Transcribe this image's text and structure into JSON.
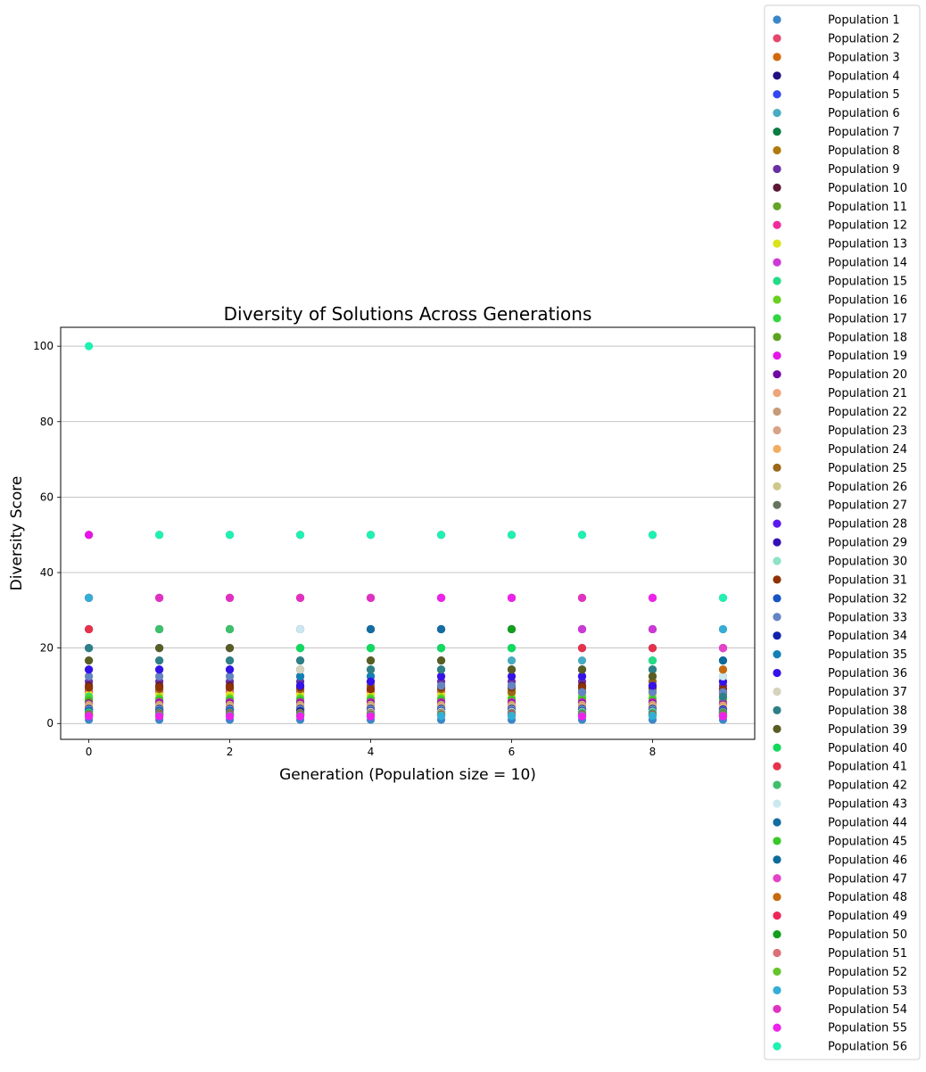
{
  "chart_data": {
    "type": "scatter",
    "title": "Diversity of Solutions Across Generations",
    "xlabel": "Generation (Population size = 10)",
    "ylabel": "Diversity Score",
    "xlim": [
      -0.4,
      9.45
    ],
    "ylim": [
      -4.2,
      105
    ],
    "x_ticks": [
      "0",
      "2",
      "4",
      "6",
      "8"
    ],
    "y_ticks": [
      "0",
      "20",
      "40",
      "60",
      "80",
      "100"
    ],
    "grid": "horizontal",
    "legend_position": "right",
    "x": [
      0,
      1,
      2,
      3,
      4,
      5,
      6,
      7,
      8,
      9
    ],
    "series": [
      {
        "name": "Population 1",
        "color": "#3a87c8",
        "values": [
          1.0,
          1.0,
          1.0,
          1.0,
          1.0,
          1.0,
          1.0,
          1.0,
          1.0,
          1.0
        ]
      },
      {
        "name": "Population 2",
        "color": "#e5466b",
        "values": [
          50,
          50,
          50,
          50,
          50,
          50,
          50,
          50,
          50,
          33.3
        ]
      },
      {
        "name": "Population 3",
        "color": "#d2680b",
        "values": [
          33.3,
          33.3,
          33.3,
          33.3,
          33.3,
          33.3,
          33.3,
          33.3,
          33.3,
          25
        ]
      },
      {
        "name": "Population 4",
        "color": "#221080",
        "values": [
          25,
          25,
          25,
          25,
          25,
          25,
          25,
          25,
          25,
          20
        ]
      },
      {
        "name": "Population 5",
        "color": "#3348f0",
        "values": [
          20,
          20,
          20,
          20,
          20,
          20,
          20,
          20,
          20,
          16.7
        ]
      },
      {
        "name": "Population 6",
        "color": "#48abc1",
        "values": [
          16.7,
          16.7,
          16.7,
          16.7,
          16.7,
          16.7,
          16.7,
          16.7,
          16.7,
          14.3
        ]
      },
      {
        "name": "Population 7",
        "color": "#0b7c42",
        "values": [
          14.3,
          14.3,
          14.3,
          14.3,
          14.3,
          14.3,
          14.3,
          14.3,
          14.3,
          12.5
        ]
      },
      {
        "name": "Population 8",
        "color": "#b07a0c",
        "values": [
          12.5,
          12.5,
          12.5,
          12.5,
          12.5,
          12.5,
          12.5,
          12.5,
          12.5,
          11.1
        ]
      },
      {
        "name": "Population 9",
        "color": "#6930a3",
        "values": [
          11.1,
          11.1,
          11.1,
          11.1,
          11.1,
          11.1,
          11.1,
          11.1,
          11.1,
          10
        ]
      },
      {
        "name": "Population 10",
        "color": "#5b1835",
        "values": [
          10,
          10,
          10,
          10,
          10,
          10,
          10,
          10,
          10,
          9.1
        ]
      },
      {
        "name": "Population 11",
        "color": "#62a425",
        "values": [
          9.1,
          9.1,
          9.1,
          9.1,
          9.1,
          9.1,
          9.1,
          9.1,
          9.1,
          8.3
        ]
      },
      {
        "name": "Population 12",
        "color": "#f42b9a",
        "values": [
          8.3,
          8.3,
          8.3,
          8.3,
          8.3,
          8.3,
          8.3,
          8.3,
          8.3,
          7.7
        ]
      },
      {
        "name": "Population 13",
        "color": "#d9e31a",
        "values": [
          7.7,
          7.7,
          7.7,
          7.7,
          7.7,
          7.7,
          7.7,
          7.7,
          7.7,
          7.1
        ]
      },
      {
        "name": "Population 14",
        "color": "#cd38d7",
        "values": [
          33.3,
          33.3,
          33.3,
          33.3,
          33.3,
          33.3,
          33.3,
          25,
          25,
          20
        ]
      },
      {
        "name": "Population 15",
        "color": "#23dc85",
        "values": [
          7.1,
          25,
          25,
          20,
          20,
          20,
          20,
          7.1,
          16.7,
          6.7
        ]
      },
      {
        "name": "Population 16",
        "color": "#6ad020",
        "values": [
          6.7,
          6.7,
          6.7,
          6.7,
          6.7,
          6.7,
          6.7,
          6.7,
          6.7,
          6.3
        ]
      },
      {
        "name": "Population 17",
        "color": "#32d640",
        "values": [
          6.3,
          6.3,
          6.3,
          6.3,
          6.3,
          6.3,
          6.3,
          6.3,
          6.3,
          5.9
        ]
      },
      {
        "name": "Population 18",
        "color": "#5aa31d",
        "values": [
          5.9,
          5.9,
          5.9,
          5.9,
          5.9,
          5.9,
          5.9,
          5.9,
          5.9,
          5.6
        ]
      },
      {
        "name": "Population 19",
        "color": "#e515e8",
        "values": [
          50,
          5.6,
          5.6,
          5.6,
          5.6,
          5.6,
          5.6,
          5.6,
          5.6,
          5.3
        ]
      },
      {
        "name": "Population 20",
        "color": "#7108a6",
        "values": [
          5.3,
          5.3,
          5.3,
          5.3,
          5.3,
          5.3,
          5.3,
          5.3,
          5.3,
          5.0
        ]
      },
      {
        "name": "Population 21",
        "color": "#eda57a",
        "values": [
          5.0,
          5.0,
          5.0,
          5.0,
          5.0,
          5.0,
          5.0,
          5.0,
          5.0,
          4.8
        ]
      },
      {
        "name": "Population 22",
        "color": "#c59b78",
        "values": [
          4.8,
          4.8,
          4.8,
          4.8,
          4.8,
          4.8,
          4.8,
          4.8,
          4.8,
          4.5
        ]
      },
      {
        "name": "Population 23",
        "color": "#d8a386",
        "values": [
          4.5,
          4.5,
          4.5,
          4.5,
          4.5,
          4.5,
          4.5,
          4.5,
          4.5,
          4.3
        ]
      },
      {
        "name": "Population 24",
        "color": "#f2ad65",
        "values": [
          4.3,
          4.3,
          4.3,
          4.3,
          4.3,
          4.3,
          4.3,
          4.3,
          4.3,
          4.2
        ]
      },
      {
        "name": "Population 25",
        "color": "#9a6817",
        "values": [
          9.5,
          9.1,
          9.5,
          9.1,
          10,
          9.1,
          8.3,
          8.3,
          11.1,
          8.3
        ]
      },
      {
        "name": "Population 26",
        "color": "#cdc88a",
        "values": [
          4.2,
          4.2,
          4.2,
          4.2,
          4.2,
          4.2,
          4.2,
          4.2,
          4.2,
          4.0
        ]
      },
      {
        "name": "Population 27",
        "color": "#66745d",
        "values": [
          4.0,
          4.0,
          4.0,
          4.0,
          4.0,
          4.0,
          4.0,
          4.0,
          4.0,
          3.8
        ]
      },
      {
        "name": "Population 28",
        "color": "#5a1aef",
        "values": [
          3.8,
          3.8,
          3.8,
          3.8,
          3.8,
          3.8,
          3.8,
          3.8,
          3.8,
          3.7
        ]
      },
      {
        "name": "Population 29",
        "color": "#3410b6",
        "values": [
          3.7,
          3.7,
          3.7,
          3.7,
          3.7,
          3.7,
          3.7,
          3.7,
          3.7,
          3.6
        ]
      },
      {
        "name": "Population 30",
        "color": "#8ee2c7",
        "values": [
          3.6,
          3.6,
          3.6,
          3.6,
          3.6,
          3.6,
          3.6,
          3.6,
          3.6,
          3.4
        ]
      },
      {
        "name": "Population 31",
        "color": "#8e3204",
        "values": [
          9.6,
          9.6,
          9.6,
          9.6,
          9.1,
          9.6,
          9.6,
          9.6,
          9.6,
          9.1
        ]
      },
      {
        "name": "Population 32",
        "color": "#1854c4",
        "values": [
          3.4,
          3.4,
          3.4,
          3.4,
          3.4,
          3.4,
          3.4,
          3.4,
          3.4,
          3.3
        ]
      },
      {
        "name": "Population 33",
        "color": "#6584c4",
        "values": [
          12.5,
          12.5,
          12.5,
          12.5,
          12.5,
          10,
          10,
          8.3,
          8.3,
          8.3
        ]
      },
      {
        "name": "Population 34",
        "color": "#0f22ab",
        "values": [
          3.3,
          3.3,
          3.3,
          3.3,
          3.3,
          3.3,
          3.3,
          3.3,
          3.3,
          3.2
        ]
      },
      {
        "name": "Population 35",
        "color": "#1380b8",
        "values": [
          3.2,
          3.2,
          3.2,
          12.5,
          12.5,
          3.2,
          3.2,
          12.5,
          3.2,
          3.1
        ]
      },
      {
        "name": "Population 36",
        "color": "#3612ea",
        "values": [
          14.3,
          14.3,
          14.3,
          10,
          11.1,
          12.5,
          12.5,
          12.5,
          10,
          11.1
        ]
      },
      {
        "name": "Population 37",
        "color": "#d5d3bd",
        "values": [
          16.7,
          16.7,
          16.7,
          14.3,
          3.1,
          3.1,
          3.1,
          3.1,
          3.1,
          3.0
        ]
      },
      {
        "name": "Population 38",
        "color": "#2e7f86",
        "values": [
          20,
          16.7,
          16.7,
          16.7,
          14.3,
          14.3,
          14.3,
          14.3,
          14.3,
          7.1
        ]
      },
      {
        "name": "Population 39",
        "color": "#595d23",
        "values": [
          16.7,
          20,
          20,
          2.9,
          16.7,
          16.7,
          14.3,
          14.3,
          12.5,
          2.9
        ]
      },
      {
        "name": "Population 40",
        "color": "#13d95e",
        "values": [
          2.9,
          2.9,
          2.9,
          20,
          20,
          20,
          20,
          2.9,
          2.9,
          2.8
        ]
      },
      {
        "name": "Population 41",
        "color": "#e5334b",
        "values": [
          25,
          2.8,
          2.8,
          2.8,
          2.8,
          2.8,
          2.8,
          20,
          20,
          2.7
        ]
      },
      {
        "name": "Population 42",
        "color": "#3fbf6c",
        "values": [
          2.7,
          25,
          25,
          2.7,
          2.7,
          2.7,
          2.7,
          2.7,
          2.7,
          2.6
        ]
      },
      {
        "name": "Population 43",
        "color": "#cbe8ee",
        "values": [
          2.6,
          2.6,
          2.6,
          25,
          2.6,
          2.6,
          2.6,
          2.6,
          2.6,
          12.5
        ]
      },
      {
        "name": "Population 44",
        "color": "#136da1",
        "values": [
          2.6,
          2.6,
          2.6,
          2.6,
          25,
          25,
          2.6,
          2.6,
          2.6,
          2.5
        ]
      },
      {
        "name": "Population 45",
        "color": "#38c828",
        "values": [
          2.5,
          2.5,
          2.5,
          2.5,
          2.5,
          2.5,
          2.5,
          2.5,
          2.5,
          2.4
        ]
      },
      {
        "name": "Population 46",
        "color": "#0e6b99",
        "values": [
          33.3,
          2.4,
          2.4,
          2.4,
          2.4,
          2.4,
          2.4,
          2.4,
          2.4,
          16.7
        ]
      },
      {
        "name": "Population 47",
        "color": "#e443c8",
        "values": [
          2.4,
          2.4,
          2.4,
          2.4,
          2.4,
          2.4,
          2.4,
          2.4,
          2.4,
          20
        ]
      },
      {
        "name": "Population 48",
        "color": "#c7690e",
        "values": [
          2.3,
          2.3,
          2.3,
          2.3,
          2.3,
          2.3,
          2.3,
          2.3,
          2.3,
          14.3
        ]
      },
      {
        "name": "Population 49",
        "color": "#ee2558",
        "values": [
          2.3,
          2.3,
          2.3,
          2.3,
          2.3,
          2.3,
          2.3,
          2.3,
          2.3,
          2.2
        ]
      },
      {
        "name": "Population 50",
        "color": "#129f1c",
        "values": [
          2.2,
          2.2,
          2.2,
          2.2,
          2.2,
          2.2,
          25,
          2.2,
          2.2,
          2.1
        ]
      },
      {
        "name": "Population 51",
        "color": "#dd6f78",
        "values": [
          2.1,
          2.1,
          2.1,
          2.1,
          2.1,
          2.1,
          2.1,
          2.1,
          2.1,
          2.1
        ]
      },
      {
        "name": "Population 52",
        "color": "#63c52b",
        "values": [
          2.1,
          2.1,
          2.1,
          2.1,
          2.1,
          2.1,
          2.1,
          2.1,
          2.1,
          2.0
        ]
      },
      {
        "name": "Population 53",
        "color": "#34aed6",
        "values": [
          33.3,
          2.0,
          2.0,
          2.0,
          2.0,
          2.0,
          2.0,
          2.0,
          2.0,
          25
        ]
      },
      {
        "name": "Population 54",
        "color": "#e131c2",
        "values": [
          2.0,
          33.3,
          33.3,
          33.3,
          33.3,
          33.3,
          33.3,
          33.3,
          33.3,
          2.0
        ]
      },
      {
        "name": "Population 55",
        "color": "#ec23ea",
        "values": [
          1.9,
          1.9,
          1.9,
          1.9,
          1.9,
          33.3,
          33.3,
          1.9,
          33.3,
          1.9
        ]
      },
      {
        "name": "Population 56",
        "color": "#1ff1b3",
        "values": [
          100,
          50,
          50,
          50,
          50,
          50,
          50,
          50,
          50,
          33.3
        ]
      }
    ]
  }
}
